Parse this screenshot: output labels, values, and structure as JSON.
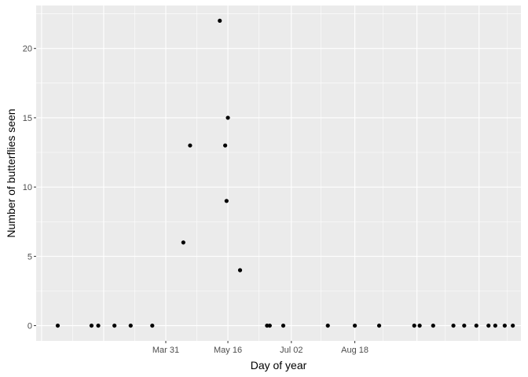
{
  "chart_data": {
    "type": "scatter",
    "xlabel": "Day of year",
    "ylabel": "Number of butterflies seen",
    "x_tick_labels": [
      {
        "value": "2020-03-31",
        "label": "Mar 31"
      },
      {
        "value": "2020-05-16",
        "label": "May 16"
      },
      {
        "value": "2020-07-02",
        "label": "Jul 02"
      },
      {
        "value": "2020-08-18",
        "label": "Aug 18"
      }
    ],
    "y_ticks": [
      0,
      5,
      10,
      15,
      20
    ],
    "xlim": [
      "2019-12-26",
      "2020-12-19"
    ],
    "ylim": [
      -1.1,
      23.1
    ],
    "grid": true,
    "colors": {
      "panel": "#ebebeb",
      "grid": "#ffffff",
      "point": "#000000",
      "tick_text": "#4d4d4d",
      "tick_mark": "#333333"
    },
    "points": [
      {
        "x": "2020-01-11",
        "y": 0
      },
      {
        "x": "2020-02-05",
        "y": 0
      },
      {
        "x": "2020-02-10",
        "y": 0
      },
      {
        "x": "2020-02-22",
        "y": 0
      },
      {
        "x": "2020-03-05",
        "y": 0
      },
      {
        "x": "2020-03-21",
        "y": 0
      },
      {
        "x": "2020-04-13",
        "y": 6
      },
      {
        "x": "2020-04-18",
        "y": 13
      },
      {
        "x": "2020-05-10",
        "y": 22
      },
      {
        "x": "2020-05-14",
        "y": 13
      },
      {
        "x": "2020-05-15",
        "y": 9
      },
      {
        "x": "2020-05-16",
        "y": 15
      },
      {
        "x": "2020-05-25",
        "y": 4
      },
      {
        "x": "2020-06-14",
        "y": 0
      },
      {
        "x": "2020-06-16",
        "y": 0
      },
      {
        "x": "2020-06-26",
        "y": 0
      },
      {
        "x": "2020-07-29",
        "y": 0
      },
      {
        "x": "2020-08-18",
        "y": 0
      },
      {
        "x": "2020-09-05",
        "y": 0
      },
      {
        "x": "2020-10-01",
        "y": 0
      },
      {
        "x": "2020-10-05",
        "y": 0
      },
      {
        "x": "2020-10-15",
        "y": 0
      },
      {
        "x": "2020-10-30",
        "y": 0
      },
      {
        "x": "2020-11-07",
        "y": 0
      },
      {
        "x": "2020-11-16",
        "y": 0
      },
      {
        "x": "2020-11-25",
        "y": 0
      },
      {
        "x": "2020-11-30",
        "y": 0
      },
      {
        "x": "2020-12-07",
        "y": 0
      },
      {
        "x": "2020-12-13",
        "y": 0
      }
    ]
  }
}
